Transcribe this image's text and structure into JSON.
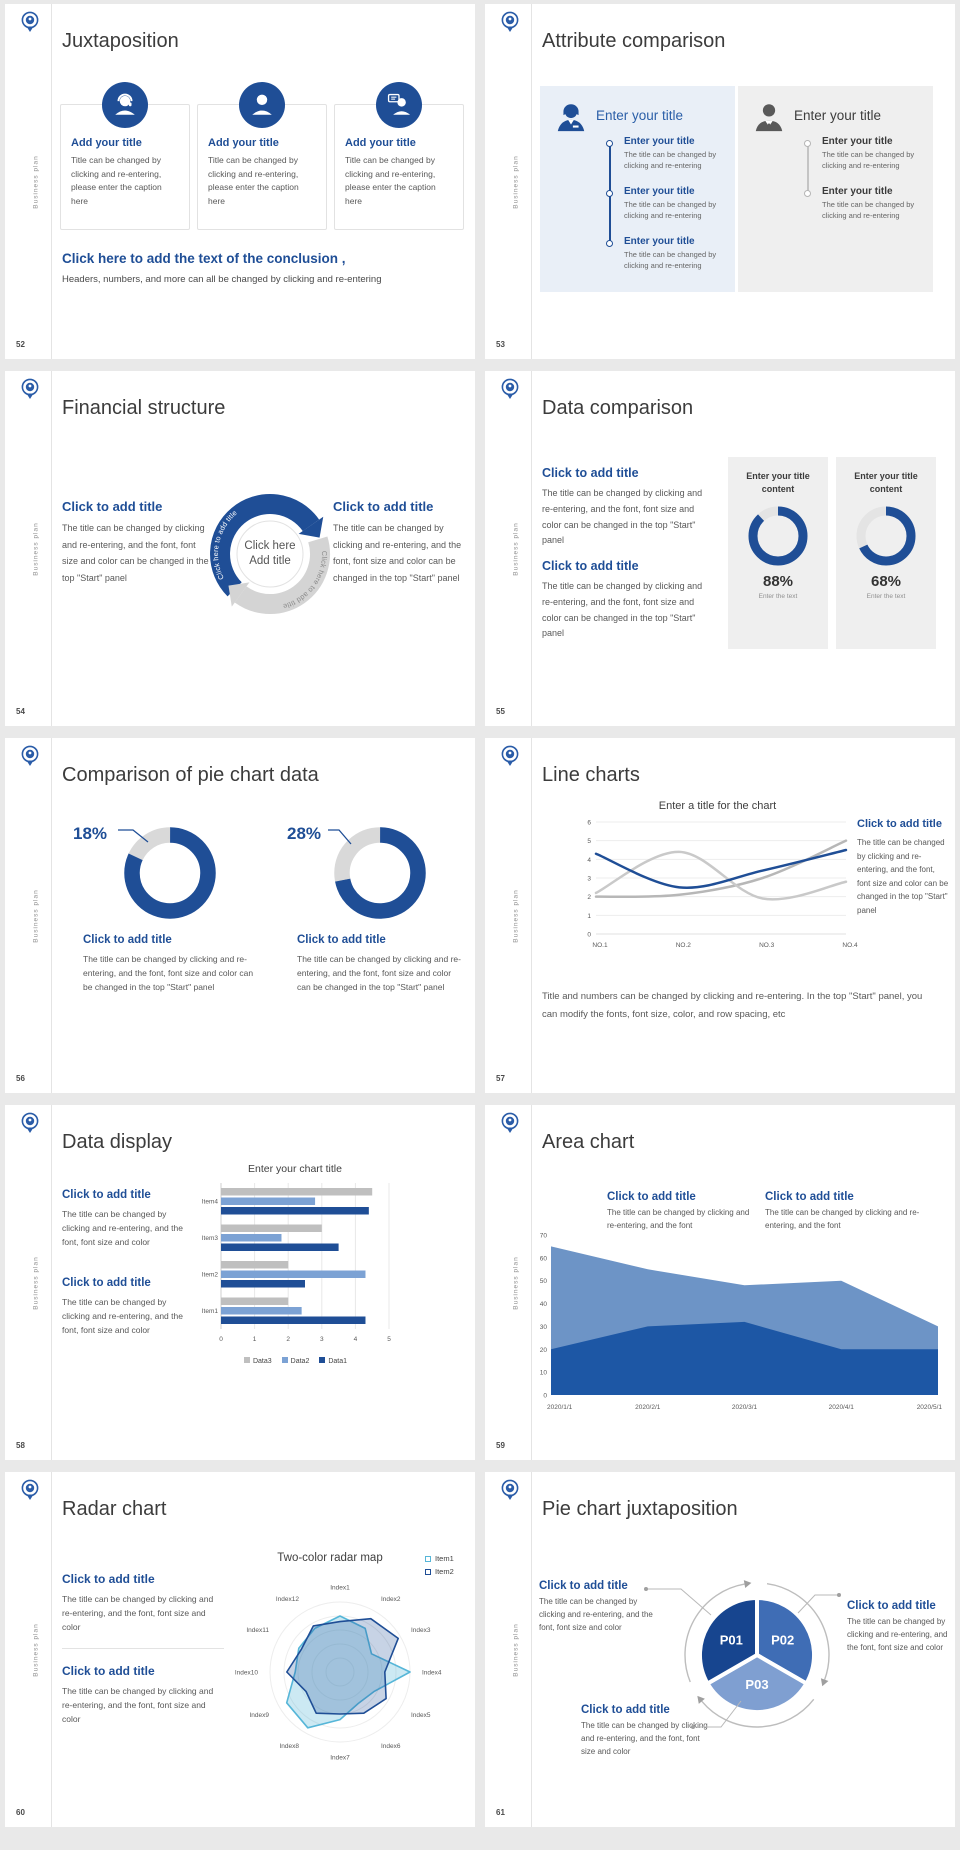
{
  "common": {
    "brand": "Business plan"
  },
  "palette": {
    "accent_blue": "#1f4e96",
    "light_blue": "#7ca2d4",
    "area_light": "#6d94c6",
    "area_dark": "#1d57a5",
    "gray_series": "#bfbfbf",
    "panel_blue_bg": "#e9eff7",
    "panel_gray_bg": "#efefef",
    "cyan": "#56b6d8"
  },
  "slides": {
    "s52": {
      "page": "52",
      "title": "Juxtaposition",
      "cards": [
        {
          "icon": "agent-icon",
          "title": "Add your title",
          "body": "Title can be changed by clicking and re-entering, please enter the caption here"
        },
        {
          "icon": "person-icon",
          "title": "Add your title",
          "body": "Title can be changed by clicking and re-entering, please enter the caption here"
        },
        {
          "icon": "chat-person-icon",
          "title": "Add your title",
          "body": "Title can be changed by clicking and re-entering, please enter the caption here"
        }
      ],
      "conclusion_title": "Click here to add the text of the conclusion ,",
      "conclusion_body": "Headers, numbers, and more can all be changed by clicking and re-entering"
    },
    "s53": {
      "page": "53",
      "title": "Attribute comparison",
      "left_panel": {
        "header": "Enter your title",
        "items": [
          {
            "title": "Enter your title",
            "body": "The title can be changed by clicking and re-entering"
          },
          {
            "title": "Enter your title",
            "body": "The title can be changed by clicking and re-entering"
          },
          {
            "title": "Enter your title",
            "body": "The title can be changed by clicking and re-entering"
          }
        ]
      },
      "right_panel": {
        "header": "Enter your title",
        "items": [
          {
            "title": "Enter your title",
            "body": "The title can be changed by clicking and re-entering"
          },
          {
            "title": "Enter your title",
            "body": "The title can be changed by clicking and re-entering"
          }
        ]
      }
    },
    "s54": {
      "page": "54",
      "title": "Financial structure",
      "left_block": {
        "heading": "Click to add title",
        "body": "The title can be changed by clicking and re-entering, and the font, font size and color can be changed in the top \"Start\" panel"
      },
      "right_block": {
        "heading": "Click to add title",
        "body": "The title can be changed by clicking and re-entering, and the font, font size and color can be changed in the top \"Start\" panel"
      },
      "center_line1": "Click here",
      "center_line2": "Add title",
      "arc_text": "Click here to add title"
    },
    "s55": {
      "page": "55",
      "title": "Data comparison",
      "blocks": [
        {
          "heading": "Click to add title",
          "body": "The title can be changed by clicking and re-entering, and the font, font size and color can be changed in the top \"Start\" panel"
        },
        {
          "heading": "Click to add title",
          "body": "The title can be changed by clicking and re-entering, and the font, font size and color can be changed in the top \"Start\" panel"
        }
      ]
    },
    "s56": {
      "page": "56",
      "title": "Comparison of pie chart data",
      "blocks": [
        {
          "heading": "Click to add title",
          "body": "The title can be changed by clicking and re-entering, and the font, font size and color can be changed in the top \"Start\" panel"
        },
        {
          "heading": "Click to add title",
          "body": "The title can be changed by clicking and re-entering, and the font, font size and color can be changed in the top \"Start\" panel"
        }
      ]
    },
    "s57": {
      "page": "57",
      "title": "Line charts",
      "side_block": {
        "heading": "Click to add title",
        "body": "The title can be changed by clicking and re-entering, and the font, font size and color can be changed in the top \"Start\" panel"
      },
      "footer": "Title and numbers can be changed by clicking and re-entering. In the top \"Start\" panel, you can modify the fonts, font size, color, and row spacing, etc"
    },
    "s58": {
      "page": "58",
      "title": "Data display",
      "blocks": [
        {
          "heading": "Click to add title",
          "body": "The title can be changed by clicking and re-entering, and the font, font size and color"
        },
        {
          "heading": "Click to add title",
          "body": "The title can be changed by clicking and re-entering, and the font, font size and color"
        }
      ]
    },
    "s59": {
      "page": "59",
      "title": "Area chart",
      "blocks": [
        {
          "heading": "Click to add title",
          "body": "The title can be changed by clicking and re-entering, and the font"
        },
        {
          "heading": "Click to add title",
          "body": "The title can be changed by clicking and re-entering, and the font"
        }
      ]
    },
    "s60": {
      "page": "60",
      "title": "Radar chart",
      "blocks": [
        {
          "heading": "Click to add title",
          "body": "The title can be changed by clicking and re-entering, and the font, font size and color"
        },
        {
          "heading": "Click to add title",
          "body": "The title can be changed by clicking and re-entering, and the font, font size and color"
        }
      ]
    },
    "s61": {
      "page": "61",
      "title": "Pie chart juxtaposition",
      "blocks": [
        {
          "heading": "Click to add title",
          "body": "The title can be changed by clicking and re-entering, and the font, font size and color"
        },
        {
          "heading": "Click to add title",
          "body": "The title can be changed by clicking and re-entering, and the font, font size and color"
        },
        {
          "heading": "Click to add title",
          "body": "The title can be changed by clicking and re-entering, and the font, font size and color"
        }
      ]
    }
  },
  "chart_data": [
    {
      "id": "s55",
      "type": "donut",
      "items": [
        {
          "header": "Enter your title content",
          "value": 88,
          "label": "88%",
          "caption": "Enter the text"
        },
        {
          "header": "Enter your title content",
          "value": 68,
          "label": "68%",
          "caption": "Enter the text"
        }
      ],
      "value_color": "#1f4e96",
      "track_color": "#e4e4e4"
    },
    {
      "id": "s56",
      "type": "donut",
      "items": [
        {
          "label": "18%",
          "value": 18
        },
        {
          "label": "28%",
          "value": 28
        }
      ],
      "slice_color": "#d9d9d9",
      "remainder_color": "#1f4e96",
      "note": "gray slice equals the labeled percentage, ending at 12 o'clock"
    },
    {
      "id": "s57",
      "type": "line",
      "title": "Enter a title for the chart",
      "x": [
        "NO.1",
        "NO.2",
        "NO.3",
        "NO.4"
      ],
      "ylim": [
        0,
        6
      ],
      "yticks": [
        0,
        1,
        2,
        3,
        4,
        5,
        6
      ],
      "series": [
        {
          "name": "series-blue",
          "color": "#1f4e96",
          "values": [
            4.3,
            2.5,
            3.4,
            4.5
          ]
        },
        {
          "name": "series-gray-1",
          "color": "#c9c9c9",
          "values": [
            2.2,
            4.4,
            1.9,
            2.8
          ]
        },
        {
          "name": "series-gray-2",
          "color": "#b7b7b7",
          "values": [
            2.0,
            2.1,
            3.0,
            5.0
          ]
        }
      ]
    },
    {
      "id": "s58",
      "type": "bar-horizontal",
      "title": "Enter your chart title",
      "categories": [
        "Item1",
        "Item2",
        "Item3",
        "Item4"
      ],
      "xlim": [
        0,
        5
      ],
      "xticks": [
        0,
        1,
        2,
        3,
        4,
        5
      ],
      "series": [
        {
          "name": "Data1",
          "color": "#1f4e96",
          "values": [
            4.3,
            2.5,
            3.5,
            4.4
          ]
        },
        {
          "name": "Data2",
          "color": "#7ca2d4",
          "values": [
            2.4,
            4.3,
            1.8,
            2.8
          ]
        },
        {
          "name": "Data3",
          "color": "#bfbfbf",
          "values": [
            2.0,
            2.0,
            3.0,
            4.5
          ]
        }
      ],
      "legend_order": [
        "Data3",
        "Data2",
        "Data1"
      ]
    },
    {
      "id": "s59",
      "type": "area",
      "x": [
        "2020/1/1",
        "2020/2/1",
        "2020/3/1",
        "2020/4/1",
        "2020/5/1"
      ],
      "ylim": [
        0,
        70
      ],
      "yticks": [
        0,
        10,
        20,
        30,
        40,
        50,
        60,
        70
      ],
      "series": [
        {
          "name": "series-light",
          "color": "#6d94c6",
          "values": [
            65,
            55,
            48,
            50,
            30
          ]
        },
        {
          "name": "series-dark",
          "color": "#1d57a5",
          "values": [
            20,
            30,
            32,
            20,
            20
          ]
        }
      ]
    },
    {
      "id": "s60",
      "type": "radar",
      "title": "Two-color radar map",
      "max": 5,
      "axes": [
        "Index1",
        "Index2",
        "Index3",
        "Index4",
        "Index5",
        "Index6",
        "Index7",
        "Index8",
        "Index9",
        "Index10",
        "Index11",
        "Index12"
      ],
      "series": [
        {
          "name": "Item1",
          "color": "#56b6d8",
          "fill": "rgba(86,182,216,0.30)",
          "values": [
            4.0,
            3.6,
            2.6,
            5.0,
            2.8,
            2.6,
            3.4,
            4.6,
            4.4,
            3.2,
            3.4,
            3.6
          ]
        },
        {
          "name": "Item2",
          "color": "#1f4e96",
          "fill": "rgba(31,78,150,0.25)",
          "values": [
            3.6,
            4.4,
            4.8,
            3.2,
            3.8,
            3.4,
            3.0,
            3.4,
            2.8,
            3.8,
            3.2,
            3.8
          ]
        }
      ]
    },
    {
      "id": "s61",
      "type": "pie",
      "labels": [
        "P01",
        "P02",
        "P03"
      ],
      "values": [
        33.3,
        33.3,
        33.4
      ],
      "colors": [
        "#17458f",
        "#3f6db5",
        "#7f9fd1"
      ]
    }
  ]
}
